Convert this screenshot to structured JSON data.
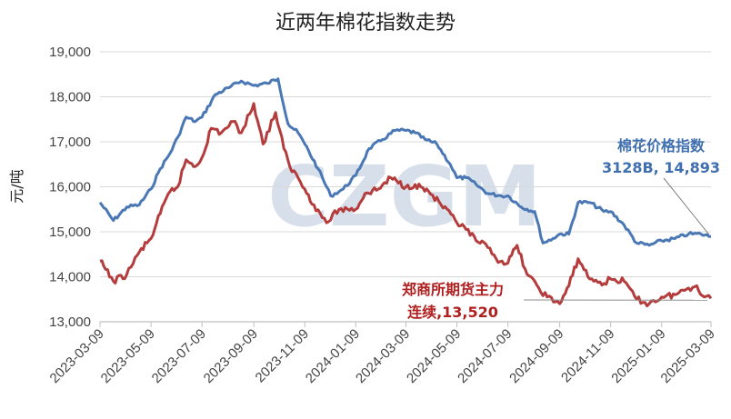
{
  "chart_data": {
    "type": "line",
    "title": "近两年棉花指数走势",
    "ylabel": "元/吨",
    "ylim": [
      13000,
      19000
    ],
    "yticks": [
      "13,000",
      "14,000",
      "15,000",
      "16,000",
      "17,000",
      "18,000",
      "19,000"
    ],
    "x_tick_labels": [
      "2023-03-09",
      "2023-05-09",
      "2023-07-09",
      "2023-09-09",
      "2023-11-09",
      "2024-01-09",
      "2024-03-09",
      "2024-05-09",
      "2024-07-09",
      "2024-09-09",
      "2024-11-09",
      "2025-01-09",
      "2025-03-09"
    ],
    "x_start": "2023-03-09",
    "x_end": "2025-03-09",
    "grid": "horizontal",
    "watermark": "CZGM",
    "series": [
      {
        "name": "棉花价格指数",
        "color": "#4a78b5",
        "annotation": [
          "棉花价格指数",
          "3128B, 14,893"
        ],
        "points": [
          [
            "2023-03-09",
            15650
          ],
          [
            "2023-03-25",
            15250
          ],
          [
            "2023-04-10",
            15550
          ],
          [
            "2023-04-25",
            15600
          ],
          [
            "2023-05-09",
            15950
          ],
          [
            "2023-05-20",
            16400
          ],
          [
            "2023-06-01",
            16750
          ],
          [
            "2023-06-10",
            17100
          ],
          [
            "2023-06-20",
            17550
          ],
          [
            "2023-07-01",
            17450
          ],
          [
            "2023-07-09",
            17550
          ],
          [
            "2023-07-25",
            18050
          ],
          [
            "2023-08-10",
            18200
          ],
          [
            "2023-08-25",
            18350
          ],
          [
            "2023-09-09",
            18250
          ],
          [
            "2023-09-25",
            18300
          ],
          [
            "2023-10-08",
            18400
          ],
          [
            "2023-10-20",
            17400
          ],
          [
            "2023-11-01",
            17200
          ],
          [
            "2023-11-09",
            16950
          ],
          [
            "2023-11-25",
            16400
          ],
          [
            "2023-12-10",
            15800
          ],
          [
            "2023-12-25",
            15950
          ],
          [
            "2024-01-09",
            16250
          ],
          [
            "2024-01-25",
            16850
          ],
          [
            "2024-02-10",
            17050
          ],
          [
            "2024-02-25",
            17250
          ],
          [
            "2024-03-09",
            17250
          ],
          [
            "2024-03-20",
            17200
          ],
          [
            "2024-04-01",
            17050
          ],
          [
            "2024-04-15",
            16950
          ],
          [
            "2024-05-01",
            16500
          ],
          [
            "2024-05-09",
            16200
          ],
          [
            "2024-05-20",
            16200
          ],
          [
            "2024-06-01",
            16050
          ],
          [
            "2024-06-15",
            15850
          ],
          [
            "2024-07-01",
            15800
          ],
          [
            "2024-07-09",
            15800
          ],
          [
            "2024-07-25",
            15550
          ],
          [
            "2024-08-10",
            15450
          ],
          [
            "2024-08-20",
            14750
          ],
          [
            "2024-09-01",
            14850
          ],
          [
            "2024-09-09",
            14950
          ],
          [
            "2024-09-20",
            14950
          ],
          [
            "2024-10-01",
            15650
          ],
          [
            "2024-10-15",
            15650
          ],
          [
            "2024-11-01",
            15450
          ],
          [
            "2024-11-09",
            15450
          ],
          [
            "2024-11-25",
            15150
          ],
          [
            "2024-12-10",
            14750
          ],
          [
            "2024-12-25",
            14700
          ],
          [
            "2025-01-09",
            14800
          ],
          [
            "2025-01-25",
            14850
          ],
          [
            "2025-02-10",
            14950
          ],
          [
            "2025-02-25",
            14950
          ],
          [
            "2025-03-09",
            14893
          ]
        ]
      },
      {
        "name": "郑商所期货主力连续",
        "color": "#b43c3c",
        "annotation": [
          "郑商所期货主力",
          "连续,13,520"
        ],
        "points": [
          [
            "2023-03-09",
            14350
          ],
          [
            "2023-03-25",
            13900
          ],
          [
            "2023-04-10",
            14050
          ],
          [
            "2023-04-25",
            14550
          ],
          [
            "2023-05-09",
            14850
          ],
          [
            "2023-05-20",
            15400
          ],
          [
            "2023-06-01",
            15900
          ],
          [
            "2023-06-10",
            16000
          ],
          [
            "2023-06-20",
            16600
          ],
          [
            "2023-07-01",
            16450
          ],
          [
            "2023-07-09",
            16650
          ],
          [
            "2023-07-20",
            17300
          ],
          [
            "2023-08-01",
            17200
          ],
          [
            "2023-08-15",
            17450
          ],
          [
            "2023-08-25",
            17200
          ],
          [
            "2023-09-09",
            17850
          ],
          [
            "2023-09-20",
            16950
          ],
          [
            "2023-10-05",
            17650
          ],
          [
            "2023-10-15",
            16850
          ],
          [
            "2023-10-22",
            16450
          ],
          [
            "2023-11-01",
            16200
          ],
          [
            "2023-11-09",
            15950
          ],
          [
            "2023-11-20",
            15600
          ],
          [
            "2023-12-05",
            15200
          ],
          [
            "2023-12-20",
            15500
          ],
          [
            "2024-01-09",
            15500
          ],
          [
            "2024-01-20",
            15850
          ],
          [
            "2024-02-05",
            15950
          ],
          [
            "2024-02-20",
            16200
          ],
          [
            "2024-03-09",
            16000
          ],
          [
            "2024-03-20",
            16050
          ],
          [
            "2024-04-05",
            15900
          ],
          [
            "2024-04-20",
            15600
          ],
          [
            "2024-05-09",
            15200
          ],
          [
            "2024-05-20",
            15050
          ],
          [
            "2024-06-01",
            14800
          ],
          [
            "2024-06-15",
            14650
          ],
          [
            "2024-06-25",
            14400
          ],
          [
            "2024-07-09",
            14300
          ],
          [
            "2024-07-20",
            14700
          ],
          [
            "2024-08-01",
            14050
          ],
          [
            "2024-08-15",
            13750
          ],
          [
            "2024-08-25",
            13550
          ],
          [
            "2024-09-09",
            13400
          ],
          [
            "2024-09-20",
            13800
          ],
          [
            "2024-10-01",
            14400
          ],
          [
            "2024-10-15",
            13950
          ],
          [
            "2024-11-01",
            13850
          ],
          [
            "2024-11-09",
            13950
          ],
          [
            "2024-11-25",
            13900
          ],
          [
            "2024-12-10",
            13500
          ],
          [
            "2024-12-25",
            13400
          ],
          [
            "2025-01-09",
            13550
          ],
          [
            "2025-01-25",
            13600
          ],
          [
            "2025-02-10",
            13750
          ],
          [
            "2025-02-20",
            13800
          ],
          [
            "2025-03-01",
            13550
          ],
          [
            "2025-03-09",
            13520
          ]
        ]
      }
    ]
  }
}
